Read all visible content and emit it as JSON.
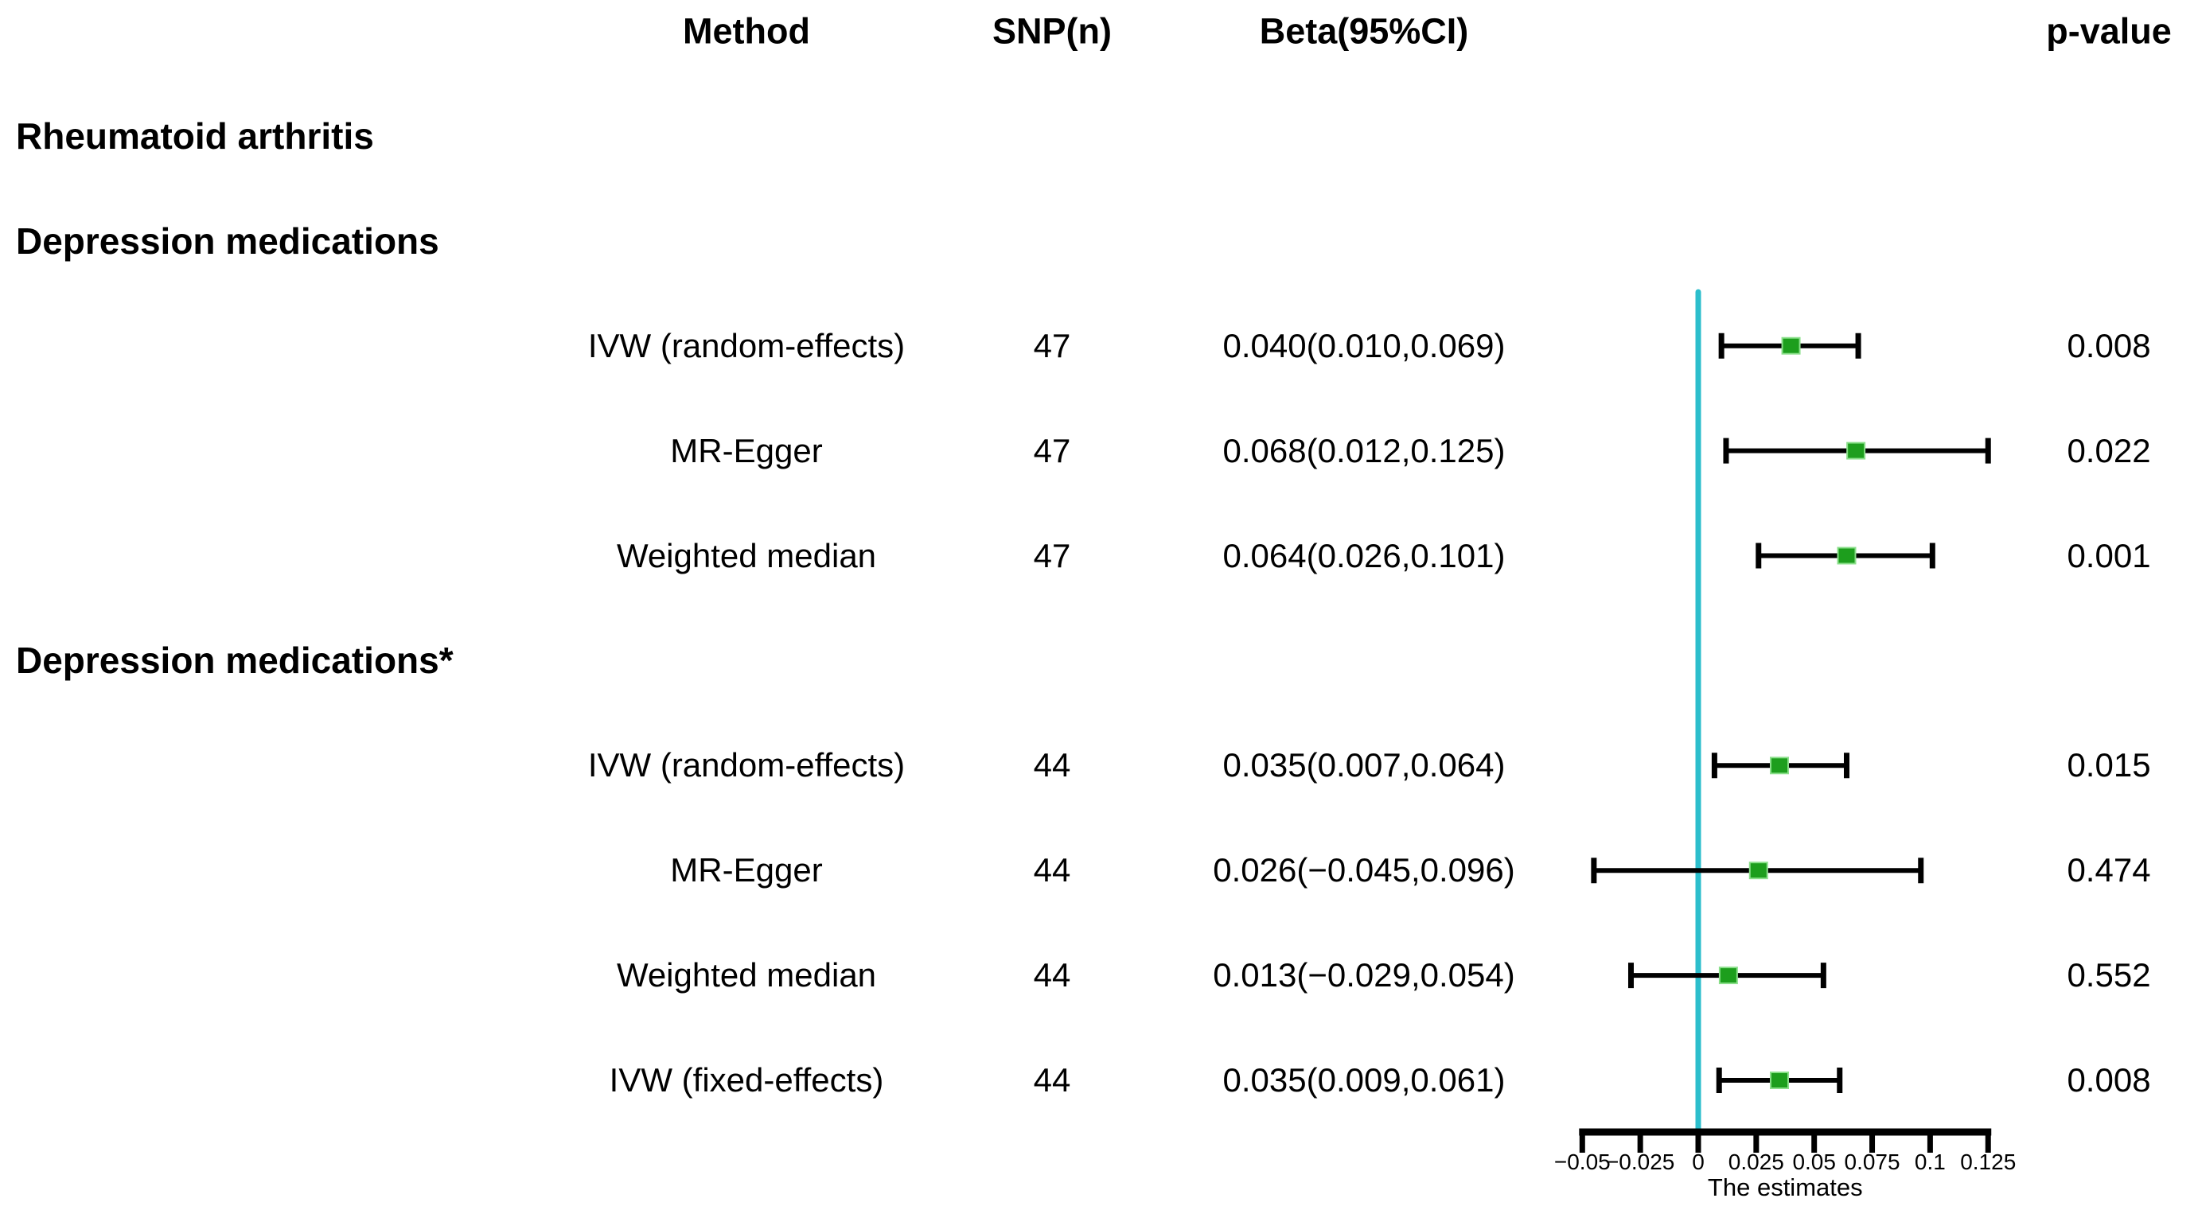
{
  "header": {
    "method": "Method",
    "snp": "SNP(n)",
    "beta": "Beta(95%CI)",
    "pvalue": "p-value"
  },
  "outcome_heading": "Rheumatoid arthritis",
  "groups": [
    {
      "heading": "Depression medications",
      "rows": [
        {
          "method": "IVW (random-effects)",
          "snp": "47",
          "beta": "0.040(0.010,0.069)",
          "p": "0.008"
        },
        {
          "method": "MR-Egger",
          "snp": "47",
          "beta": "0.068(0.012,0.125)",
          "p": "0.022"
        },
        {
          "method": "Weighted median",
          "snp": "47",
          "beta": "0.064(0.026,0.101)",
          "p": "0.001"
        }
      ]
    },
    {
      "heading": "Depression medications*",
      "rows": [
        {
          "method": "IVW (random-effects)",
          "snp": "44",
          "beta": "0.035(0.007,0.064)",
          "p": "0.015"
        },
        {
          "method": "MR-Egger",
          "snp": "44",
          "beta": "0.026(−0.045,0.096)",
          "p": "0.474"
        },
        {
          "method": "Weighted median",
          "snp": "44",
          "beta": "0.013(−0.029,0.054)",
          "p": "0.552"
        },
        {
          "method": "IVW (fixed-effects)",
          "snp": "44",
          "beta": "0.035(0.009,0.061)",
          "p": "0.008"
        }
      ]
    }
  ],
  "chart_data": {
    "type": "forest",
    "xlabel": "The estimates",
    "xlim": [
      -0.05,
      0.125
    ],
    "zero_line": 0,
    "grid": false,
    "ticks": {
      "values": [
        -0.05,
        -0.025,
        0,
        0.025,
        0.05,
        0.075,
        0.1,
        0.125
      ],
      "labels": [
        "−0.05",
        "−0.025",
        "0",
        "0.025",
        "0.05",
        "0.075",
        "0.1",
        "0.125"
      ]
    },
    "points": [
      {
        "label": "IVW (random-effects)",
        "group": "Depression medications",
        "n": 47,
        "beta": 0.04,
        "lo": 0.01,
        "hi": 0.069,
        "p": 0.008
      },
      {
        "label": "MR-Egger",
        "group": "Depression medications",
        "n": 47,
        "beta": 0.068,
        "lo": 0.012,
        "hi": 0.125,
        "p": 0.022
      },
      {
        "label": "Weighted median",
        "group": "Depression medications",
        "n": 47,
        "beta": 0.064,
        "lo": 0.026,
        "hi": 0.101,
        "p": 0.001
      },
      {
        "label": "IVW (random-effects)",
        "group": "Depression medications*",
        "n": 44,
        "beta": 0.035,
        "lo": 0.007,
        "hi": 0.064,
        "p": 0.015
      },
      {
        "label": "MR-Egger",
        "group": "Depression medications*",
        "n": 44,
        "beta": 0.026,
        "lo": -0.045,
        "hi": 0.096,
        "p": 0.474
      },
      {
        "label": "Weighted median",
        "group": "Depression medications*",
        "n": 44,
        "beta": 0.013,
        "lo": -0.029,
        "hi": 0.054,
        "p": 0.552
      },
      {
        "label": "IVW (fixed-effects)",
        "group": "Depression medications*",
        "n": 44,
        "beta": 0.035,
        "lo": 0.009,
        "hi": 0.061,
        "p": 0.008
      }
    ],
    "colors": {
      "zero_line": "#2CBECC",
      "marker_fill": "#1D9E1D",
      "marker_edge": "#8ADF8A",
      "ci_line": "#000000",
      "text": "#000000"
    },
    "legend": null
  }
}
